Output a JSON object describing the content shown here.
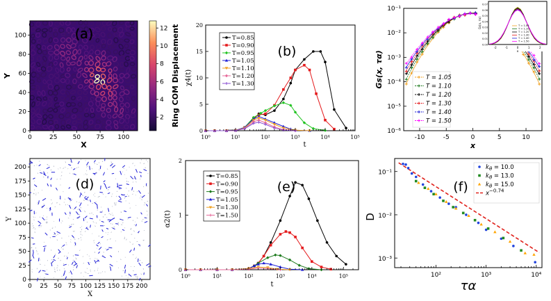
{
  "colors": {
    "black": "#000000",
    "red": "#e41a1c",
    "green": "#22c322",
    "blue": "#1f1fd6",
    "orange": "#f0a020",
    "pink": "#e66a9a",
    "purple": "#8a4fd0",
    "magenta": "#ff00ff",
    "darkgreen": "#1d7a1d",
    "fitred": "#e0201a",
    "dotblue": "#2244dd",
    "sqgreen": "#228B22",
    "triorange": "#ffa500"
  },
  "chart_data": [
    {
      "panel": "(a)",
      "type": "heatmap",
      "xlabel": "X",
      "ylabel": "Y",
      "xticks": [
        0,
        25,
        50,
        75,
        100
      ],
      "yticks": [
        0,
        20,
        40,
        60,
        80,
        100
      ],
      "xlim": [
        0,
        115
      ],
      "ylim": [
        0,
        115
      ],
      "colorbar": {
        "label": "Ring COM Displacement",
        "ticks": [
          2,
          4,
          6,
          8,
          10,
          12
        ],
        "range": [
          0.5,
          12.8
        ]
      }
    },
    {
      "panel": "(b)",
      "type": "line",
      "ylabel": "χ4(t)",
      "xlabel": "t",
      "xscale": "log",
      "xlim": [
        1,
        100000
      ],
      "ylim": [
        0,
        20
      ],
      "xtick_labels": [
        "10⁰",
        "10¹",
        "10²",
        "10³",
        "10⁴",
        "10⁵"
      ],
      "yticks": [
        0,
        5,
        10,
        15,
        20
      ],
      "series": [
        {
          "name": "T=0.85",
          "color": "black",
          "x": [
            1,
            2,
            5,
            10,
            20,
            40,
            60,
            100,
            200,
            400,
            700,
            1000,
            2000,
            4000,
            7000,
            10000,
            20000,
            50000
          ],
          "y": [
            0,
            0,
            0,
            0.05,
            0.6,
            2.2,
            3.2,
            3.0,
            3.8,
            6.0,
            9.0,
            11.5,
            13.5,
            15.0,
            15.0,
            13.0,
            4.0,
            0.5
          ]
        },
        {
          "name": "T=0.90",
          "color": "red",
          "x": [
            1,
            2,
            5,
            10,
            20,
            40,
            60,
            100,
            200,
            400,
            700,
            1000,
            2000,
            3000,
            5000,
            10000,
            20000
          ],
          "y": [
            0,
            0,
            0,
            0.05,
            0.6,
            2.4,
            3.0,
            3.2,
            4.8,
            7.8,
            10.0,
            11.5,
            12.4,
            11.5,
            7.0,
            2.0,
            0.3
          ]
        },
        {
          "name": "T=0.95",
          "color": "green",
          "x": [
            1,
            2,
            5,
            10,
            20,
            40,
            70,
            100,
            200,
            400,
            700,
            1000,
            2000,
            4000,
            10000
          ],
          "y": [
            0,
            0,
            0,
            0.05,
            0.6,
            2.5,
            3.3,
            3.8,
            4.7,
            5.3,
            4.8,
            3.5,
            1.5,
            0.4,
            0.05
          ]
        },
        {
          "name": "T=1.05",
          "color": "blue",
          "x": [
            1,
            2,
            5,
            10,
            20,
            40,
            60,
            100,
            200,
            400,
            700,
            1000,
            3000
          ],
          "y": [
            0,
            0,
            0,
            0.05,
            0.6,
            2.2,
            2.7,
            2.2,
            1.5,
            0.8,
            0.3,
            0.1,
            0
          ]
        },
        {
          "name": "T=1.10",
          "color": "orange",
          "x": [
            1,
            2,
            5,
            10,
            20,
            40,
            60,
            100,
            200,
            400,
            1000,
            3000
          ],
          "y": [
            0,
            0,
            0,
            0.05,
            0.5,
            2.0,
            2.4,
            2.0,
            1.2,
            0.5,
            0.1,
            0
          ]
        },
        {
          "name": "T=1.20",
          "color": "pink",
          "x": [
            1,
            2,
            5,
            10,
            20,
            40,
            60,
            100,
            200,
            400,
            1000
          ],
          "y": [
            0,
            0,
            0,
            0.05,
            0.4,
            1.7,
            2.0,
            1.5,
            0.7,
            0.2,
            0
          ]
        },
        {
          "name": "T=1.30",
          "color": "purple",
          "x": [
            1,
            2,
            5,
            10,
            20,
            40,
            60,
            100,
            200,
            400,
            1000
          ],
          "y": [
            0,
            0,
            0,
            0.05,
            0.35,
            1.4,
            1.6,
            1.2,
            0.5,
            0.1,
            0
          ]
        }
      ]
    },
    {
      "panel": "(c)",
      "type": "line",
      "ylabel": "Gs(x, τα)",
      "xlabel": "x",
      "yscale": "log",
      "xlim": [
        -13,
        13
      ],
      "ylim": [
        1e-06,
        0.1
      ],
      "xticks": [
        -10,
        -5,
        0,
        5,
        10
      ],
      "ytick_labels": [
        "10⁻⁶",
        "10⁻⁵",
        "10⁻⁴",
        "10⁻³",
        "10⁻²",
        "10⁻¹"
      ],
      "series": [
        {
          "name": "T = 1.05",
          "color": "orange",
          "peak": 0.065,
          "width": 2.7
        },
        {
          "name": "T = 1.10",
          "color": "darkgreen",
          "peak": 0.064,
          "width": 2.8
        },
        {
          "name": "T = 1.20",
          "color": "black",
          "peak": 0.063,
          "width": 2.9
        },
        {
          "name": "T = 1.30",
          "color": "red",
          "peak": 0.062,
          "width": 3.0
        },
        {
          "name": "T = 1.40",
          "color": "blue",
          "peak": 0.061,
          "width": 3.1
        },
        {
          "name": "T = 1.50",
          "color": "magenta",
          "peak": 0.06,
          "width": 3.2
        }
      ],
      "inset": {
        "ylabel": "Gs(x, τα)",
        "xlabel": "x",
        "xticks": [
          "-2",
          "-1",
          "0",
          "1",
          "2"
        ],
        "yticks": [
          "0.00",
          "0.01",
          "0.02",
          "0.03",
          "0.04",
          "0.05",
          "0.06",
          "0.07"
        ],
        "legend": [
          "T = 1.05",
          "T = 1.10",
          "T = 1.20",
          "T = 1.30",
          "T = 1.40",
          "T = 1.50"
        ]
      }
    },
    {
      "panel": "(d)",
      "type": "scatter",
      "xlabel": "X",
      "ylabel": "Y",
      "xticks": [
        0,
        25,
        50,
        75,
        100,
        125,
        150,
        175,
        200
      ],
      "yticks": [
        0,
        25,
        50,
        75,
        100,
        125,
        150,
        175,
        200
      ],
      "xlim": [
        0,
        215
      ],
      "ylim": [
        0,
        215
      ]
    },
    {
      "panel": "(e)",
      "type": "line",
      "ylabel": "α2(t)",
      "xlabel": "t",
      "xscale": "log",
      "xlim": [
        1,
        300000
      ],
      "ylim": [
        0,
        2
      ],
      "xtick_labels": [
        "10⁰",
        "10¹",
        "10²",
        "10³",
        "10⁴",
        "10⁵"
      ],
      "yticks": [
        0,
        1,
        2
      ],
      "series": [
        {
          "name": "T=0.85",
          "color": "black",
          "x": [
            1,
            3,
            10,
            30,
            100,
            150,
            200,
            300,
            500,
            1000,
            2000,
            3000,
            5000,
            8000,
            15000,
            30000,
            60000,
            120000
          ],
          "y": [
            0,
            0,
            0,
            0,
            0.02,
            0.07,
            0.12,
            0.25,
            0.5,
            0.9,
            1.35,
            1.6,
            1.55,
            1.3,
            0.9,
            0.5,
            0.25,
            0.1
          ]
        },
        {
          "name": "T=0.90",
          "color": "red",
          "x": [
            1,
            3,
            10,
            30,
            100,
            150,
            200,
            300,
            500,
            1000,
            1500,
            2000,
            3000,
            5000,
            10000,
            20000,
            40000
          ],
          "y": [
            0,
            0,
            0,
            0,
            0.02,
            0.07,
            0.12,
            0.25,
            0.45,
            0.65,
            0.7,
            0.68,
            0.6,
            0.4,
            0.15,
            0.05,
            0.01
          ]
        },
        {
          "name": "T=0.95",
          "color": "darkgreen",
          "x": [
            1,
            3,
            10,
            30,
            100,
            150,
            200,
            400,
            700,
            1000,
            2000,
            4000,
            8000,
            20000
          ],
          "y": [
            0,
            0,
            0,
            0,
            0.02,
            0.07,
            0.12,
            0.22,
            0.27,
            0.26,
            0.18,
            0.08,
            0.02,
            0
          ]
        },
        {
          "name": "T=1.05",
          "color": "blue",
          "x": [
            1,
            3,
            10,
            30,
            100,
            150,
            200,
            300,
            500,
            1000,
            2000,
            5000
          ],
          "y": [
            0,
            0,
            0,
            0,
            0.02,
            0.07,
            0.1,
            0.12,
            0.1,
            0.05,
            0.01,
            0
          ]
        },
        {
          "name": "T=1.30",
          "color": "orange",
          "x": [
            1,
            3,
            10,
            30,
            100,
            200,
            400,
            800,
            2000
          ],
          "y": [
            0,
            0,
            0,
            0,
            0.02,
            0.05,
            0.04,
            0.01,
            0
          ]
        },
        {
          "name": "T=1.50",
          "color": "pink",
          "x": [
            1,
            3,
            10,
            30,
            100,
            200,
            400,
            1000
          ],
          "y": [
            0,
            0,
            0,
            0,
            0.01,
            0.03,
            0.02,
            0
          ]
        }
      ]
    },
    {
      "panel": "(f)",
      "type": "scatter",
      "xlabel": "τα",
      "ylabel": "D",
      "xscale": "log",
      "yscale": "log",
      "xlim": [
        15,
        13000
      ],
      "ylim": [
        0.0006,
        0.2
      ],
      "xtick_labels": [
        "10²",
        "10³",
        "10⁴"
      ],
      "ytick_labels": [
        "10⁻³",
        "10⁻²",
        "10⁻¹"
      ],
      "series": [
        {
          "name": "kθ = 10.0",
          "color": "dotblue",
          "marker": "circle",
          "x": [
            22,
            25,
            28,
            33,
            40,
            55,
            80,
            120,
            180,
            250,
            400,
            700,
            1000,
            2000,
            3500,
            9500
          ],
          "y": [
            0.15,
            0.145,
            0.12,
            0.09,
            0.075,
            0.05,
            0.035,
            0.025,
            0.018,
            0.015,
            0.01,
            0.0065,
            0.0045,
            0.0028,
            0.0019,
            0.0008
          ]
        },
        {
          "name": "kθ = 13.0",
          "color": "sqgreen",
          "marker": "square",
          "x": [
            40,
            60,
            90,
            140,
            220,
            350,
            600,
            1100,
            2200,
            5000
          ],
          "y": [
            0.06,
            0.042,
            0.03,
            0.021,
            0.015,
            0.011,
            0.0075,
            0.0048,
            0.0029,
            0.0015
          ]
        },
        {
          "name": "kθ = 15.0",
          "color": "triorange",
          "marker": "triangle",
          "x": [
            45,
            70,
            100,
            160,
            250,
            450,
            800,
            1500,
            3000,
            6000,
            9000
          ],
          "y": [
            0.055,
            0.04,
            0.03,
            0.02,
            0.014,
            0.0095,
            0.006,
            0.004,
            0.0024,
            0.0013,
            0.0012
          ]
        },
        {
          "name": "x^-0.74",
          "color": "fitred",
          "marker": "dashed",
          "exponent": -0.74,
          "prefactor": 1.0
        }
      ]
    }
  ],
  "labels": {
    "a_tag": "(a)",
    "b_tag": "(b)",
    "c_tag": "(c)",
    "d_tag": "(d)",
    "e_tag": "(e)",
    "f_tag": "(f)",
    "fit_label": "x",
    "fit_exp": "−0.74",
    "k_prefix": "k",
    "k_sub": "θ",
    "k_vals": [
      "= 10.0",
      "= 13.0",
      "= 15.0"
    ]
  }
}
